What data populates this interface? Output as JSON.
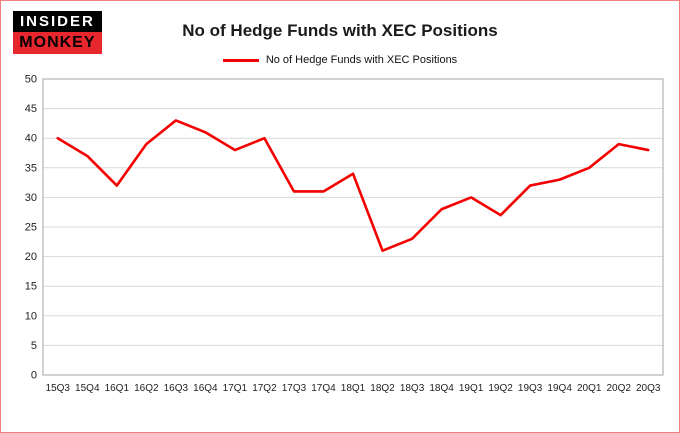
{
  "logo": {
    "line1": "INSIDER",
    "line2": "MONKEY"
  },
  "header": {
    "title": "No of Hedge Funds with XEC Positions"
  },
  "legend": {
    "label": "No of Hedge Funds with XEC Positions"
  },
  "colors": {
    "line": "#f40000",
    "grid": "#d9d9d9",
    "axis": "#a6a6a6",
    "text": "#1a1a1a",
    "tick_text": "#222222",
    "page_border": "#f08080",
    "logo_black": "#000000",
    "logo_red": "#e8262d"
  },
  "chart_data": {
    "type": "line",
    "title": "No of Hedge Funds with XEC Positions",
    "categories": [
      "15Q3",
      "15Q4",
      "16Q1",
      "16Q2",
      "16Q3",
      "16Q4",
      "17Q1",
      "17Q2",
      "17Q3",
      "17Q4",
      "18Q1",
      "18Q2",
      "18Q3",
      "18Q4",
      "19Q1",
      "19Q2",
      "19Q3",
      "19Q4",
      "20Q1",
      "20Q2",
      "20Q3"
    ],
    "series": [
      {
        "name": "No of Hedge Funds with XEC Positions",
        "values": [
          40,
          37,
          32,
          39,
          43,
          41,
          38,
          40,
          31,
          31,
          34,
          21,
          23,
          28,
          30,
          27,
          32,
          33,
          35,
          39,
          38
        ]
      }
    ],
    "xlabel": "",
    "ylabel": "",
    "ylim": [
      0,
      50
    ],
    "ytick_step": 5,
    "grid": true,
    "legend_position": "top"
  }
}
